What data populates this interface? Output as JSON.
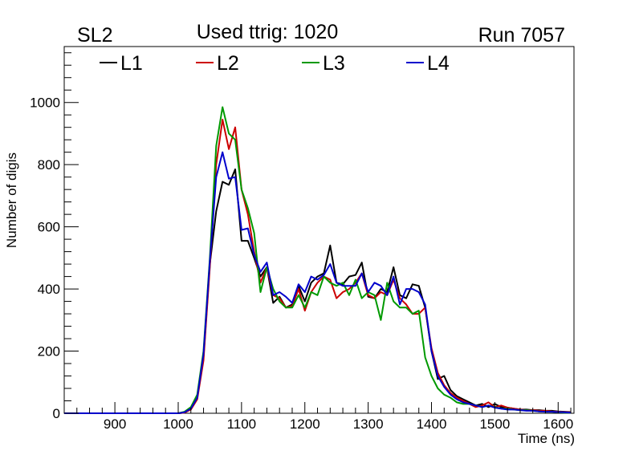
{
  "chart_data": {
    "type": "line",
    "title_left": "SL2",
    "title_center": "Used ttrig: 1020",
    "title_right": "Run 7057",
    "xlabel": "Time (ns)",
    "ylabel": "Number of digis",
    "xlim": [
      820,
      1625
    ],
    "ylim": [
      0,
      1180
    ],
    "xticks": [
      900,
      1000,
      1100,
      1200,
      1300,
      1400,
      1500,
      1600
    ],
    "xtick_labels": [
      "900",
      "1000",
      "1100",
      "1200",
      "1300",
      "1400",
      "1500",
      "1600"
    ],
    "yticks": [
      0,
      200,
      400,
      600,
      800,
      1000
    ],
    "ytick_labels": [
      "0",
      "200",
      "400",
      "600",
      "800",
      "1000"
    ],
    "grid": false,
    "legend_placement": "top-left",
    "x_start": 820,
    "x_step": 10,
    "series": [
      {
        "name": "L1",
        "color": "#000000",
        "values": [
          0,
          0,
          0,
          0,
          0,
          0,
          0,
          0,
          0,
          0,
          0,
          0,
          0,
          0,
          0,
          0,
          0,
          0,
          0,
          2,
          15,
          50,
          180,
          480,
          650,
          745,
          735,
          785,
          555,
          555,
          500,
          440,
          470,
          355,
          375,
          340,
          350,
          410,
          360,
          420,
          440,
          450,
          540,
          420,
          415,
          440,
          445,
          485,
          375,
          370,
          400,
          390,
          470,
          380,
          370,
          415,
          410,
          340,
          200,
          110,
          120,
          75,
          55,
          45,
          35,
          25,
          30,
          20,
          30,
          20,
          18,
          15,
          12,
          12,
          10,
          10,
          8,
          8,
          6,
          5,
          4
        ]
      },
      {
        "name": "L2",
        "color": "#cc0000",
        "values": [
          0,
          0,
          0,
          0,
          0,
          0,
          0,
          0,
          0,
          0,
          0,
          0,
          0,
          0,
          0,
          0,
          0,
          0,
          0,
          2,
          12,
          45,
          170,
          470,
          800,
          945,
          850,
          920,
          720,
          640,
          520,
          420,
          470,
          380,
          370,
          340,
          345,
          400,
          330,
          390,
          420,
          440,
          430,
          370,
          390,
          400,
          420,
          450,
          380,
          370,
          390,
          380,
          430,
          370,
          350,
          320,
          320,
          340,
          210,
          130,
          90,
          65,
          50,
          40,
          30,
          20,
          25,
          35,
          20,
          25,
          18,
          15,
          12,
          10,
          10,
          8,
          8,
          6,
          5,
          4,
          3
        ]
      },
      {
        "name": "L3",
        "color": "#009900",
        "values": [
          0,
          0,
          0,
          0,
          0,
          0,
          0,
          0,
          0,
          0,
          0,
          0,
          0,
          0,
          0,
          0,
          0,
          0,
          0,
          5,
          20,
          60,
          200,
          500,
          860,
          985,
          900,
          880,
          720,
          660,
          580,
          390,
          470,
          400,
          360,
          340,
          340,
          380,
          340,
          390,
          380,
          440,
          420,
          410,
          420,
          380,
          430,
          370,
          390,
          380,
          300,
          420,
          360,
          340,
          340,
          320,
          330,
          180,
          120,
          80,
          60,
          50,
          35,
          30,
          30,
          25,
          20,
          25,
          20,
          15,
          15,
          12,
          10,
          10,
          8,
          6,
          5,
          5,
          3,
          2,
          2
        ]
      },
      {
        "name": "L4",
        "color": "#0000cc",
        "values": [
          0,
          0,
          0,
          0,
          0,
          0,
          0,
          0,
          0,
          0,
          0,
          0,
          0,
          0,
          0,
          0,
          0,
          0,
          0,
          3,
          15,
          50,
          190,
          490,
          760,
          840,
          755,
          760,
          590,
          595,
          510,
          455,
          485,
          380,
          390,
          375,
          355,
          415,
          390,
          440,
          430,
          445,
          480,
          420,
          410,
          410,
          410,
          450,
          390,
          420,
          410,
          380,
          440,
          350,
          400,
          400,
          390,
          350,
          200,
          120,
          85,
          60,
          45,
          35,
          30,
          25,
          20,
          25,
          18,
          15,
          12,
          12,
          10,
          8,
          8,
          6,
          5,
          5,
          4,
          3,
          2
        ]
      }
    ]
  }
}
